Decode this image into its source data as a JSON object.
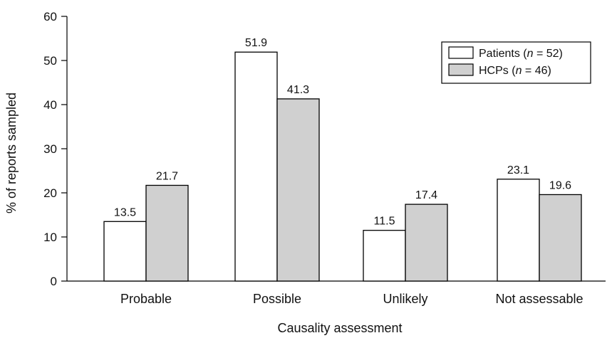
{
  "chart_data": {
    "type": "bar",
    "categories": [
      "Probable",
      "Possible",
      "Unlikely",
      "Not assessable"
    ],
    "series": [
      {
        "name": "Patients",
        "n_label": "n",
        "n_value": "52",
        "values": [
          13.5,
          51.9,
          11.5,
          23.1
        ],
        "color": "#ffffff"
      },
      {
        "name": "HCPs",
        "n_label": "n",
        "n_value": "46",
        "values": [
          21.7,
          41.3,
          17.4,
          19.6
        ],
        "color": "#d0d0d0"
      }
    ],
    "value_labels": [
      [
        "13.5",
        "51.9",
        "11.5",
        "23.1"
      ],
      [
        "21.7",
        "41.3",
        "17.4",
        "19.6"
      ]
    ],
    "title": "",
    "xlabel": "Causality assessment",
    "ylabel": "% of reports sampled",
    "ylim": [
      0,
      60
    ],
    "yticks": [
      0,
      10,
      20,
      30,
      40,
      50,
      60
    ],
    "ytick_labels": [
      "0",
      "10",
      "20",
      "30",
      "40",
      "50",
      "60"
    ],
    "grid": false,
    "legend_position": "top-right",
    "bar_edge_color": "#000000"
  }
}
